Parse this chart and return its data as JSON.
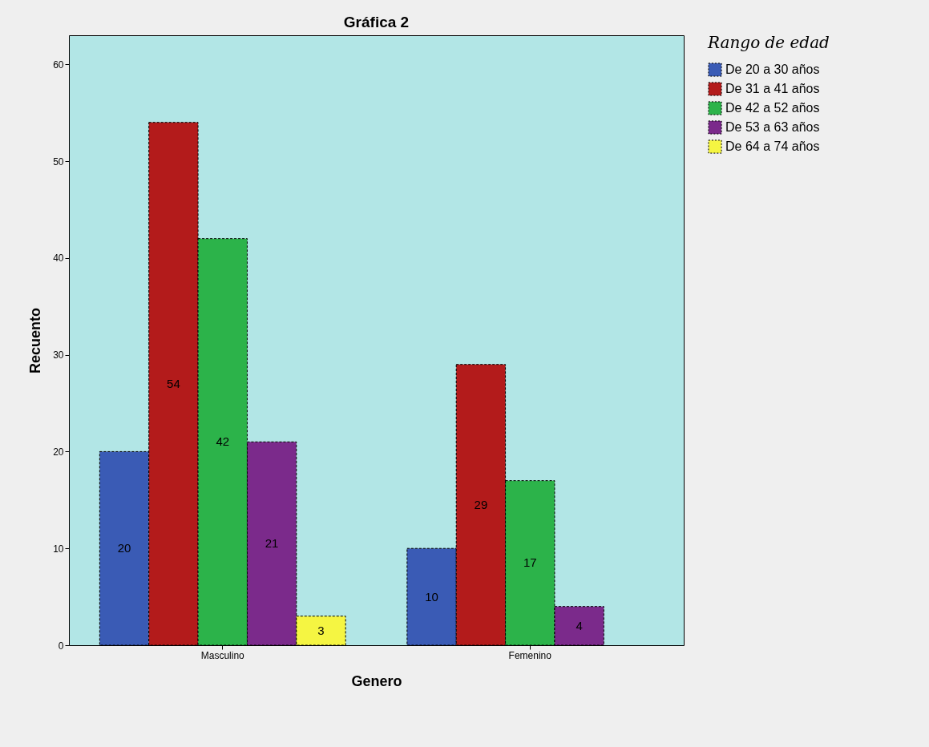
{
  "chart_data": {
    "type": "bar",
    "title": "Gráfica 2",
    "xlabel": "Genero",
    "ylabel": "Recuento",
    "legend_title": "Rango de edad",
    "categories": [
      "Masculino",
      "Femenino"
    ],
    "series": [
      {
        "name": "De 20 a 30 años",
        "color": "#3a5bb5",
        "values": [
          20,
          10
        ]
      },
      {
        "name": "De 31 a 41 años",
        "color": "#b31b1b",
        "values": [
          54,
          29
        ]
      },
      {
        "name": "De 42 a 52 años",
        "color": "#2cb34a",
        "values": [
          42,
          17
        ]
      },
      {
        "name": "De 53 a 63 años",
        "color": "#7b2a8b",
        "values": [
          21,
          4
        ]
      },
      {
        "name": "De 64 a 74 años",
        "color": "#f5f542",
        "values": [
          3,
          null
        ]
      }
    ],
    "ylim": [
      0,
      63
    ],
    "yticks": [
      0,
      10,
      20,
      30,
      40,
      50,
      60
    ],
    "grid": false,
    "legend": "right",
    "data_labels": true
  }
}
